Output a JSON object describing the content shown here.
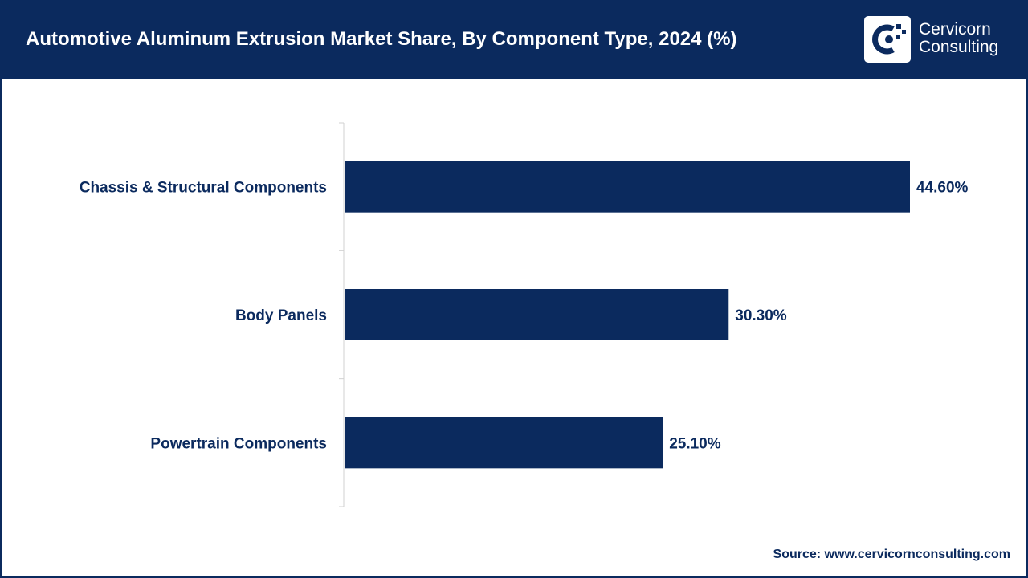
{
  "header": {
    "title": "Automotive Aluminum Extrusion Market Share, By Component Type, 2024 (%)",
    "logo_line1": "Cervicorn",
    "logo_line2": "Consulting"
  },
  "source": "Source: www.cervicornconsulting.com",
  "colors": {
    "bar": "#0b2a5e",
    "header": "#0b2a5e",
    "text": "#0b2a5e"
  },
  "chart_data": {
    "type": "bar",
    "orientation": "horizontal",
    "categories": [
      "Chassis & Structural Components",
      "Body Panels",
      "Powertrain Components"
    ],
    "values": [
      44.6,
      30.3,
      25.1
    ],
    "value_labels": [
      "44.60%",
      "30.30%",
      "25.10%"
    ],
    "title": "Automotive Aluminum Extrusion Market Share, By Component Type, 2024 (%)",
    "xlabel": "",
    "ylabel": "",
    "grid": false,
    "legend": "none"
  }
}
